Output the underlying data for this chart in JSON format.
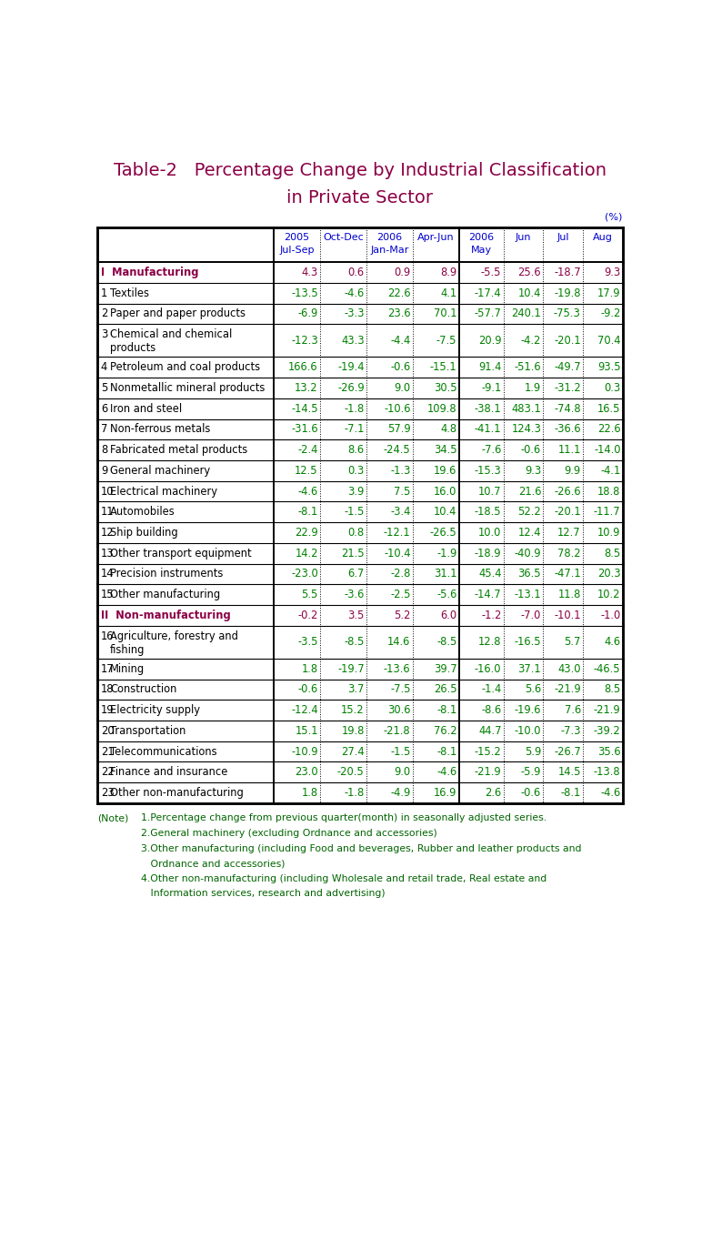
{
  "title_line1": "Table-2   Percentage Change by Industrial Classification",
  "title_line2": "in Private Sector",
  "title_color": "#8B0045",
  "percent_label": "(%)",
  "header_color": "#0000CD",
  "rows": [
    {
      "label": "Manufacturing",
      "num": "I",
      "bold": true,
      "roman": true,
      "category_color": "#8B0045",
      "values": [
        "4.3",
        "0.6",
        "0.9",
        "8.9",
        "-5.5",
        "25.6",
        "-18.7",
        "9.3"
      ],
      "value_color": "#8B0045",
      "multiline": false
    },
    {
      "label": "Textiles",
      "num": "1",
      "bold": false,
      "roman": false,
      "category_color": "#000000",
      "values": [
        "-13.5",
        "-4.6",
        "22.6",
        "4.1",
        "-17.4",
        "10.4",
        "-19.8",
        "17.9"
      ],
      "value_color": "#008000",
      "multiline": false
    },
    {
      "label": "Paper and paper products",
      "num": "2",
      "bold": false,
      "roman": false,
      "category_color": "#000000",
      "values": [
        "-6.9",
        "-3.3",
        "23.6",
        "70.1",
        "-57.7",
        "240.1",
        "-75.3",
        "-9.2"
      ],
      "value_color": "#008000",
      "multiline": false
    },
    {
      "label": "Chemical and chemical\nproducts",
      "num": "3",
      "bold": false,
      "roman": false,
      "category_color": "#000000",
      "values": [
        "-12.3",
        "43.3",
        "-4.4",
        "-7.5",
        "20.9",
        "-4.2",
        "-20.1",
        "70.4"
      ],
      "value_color": "#008000",
      "multiline": true
    },
    {
      "label": "Petroleum and coal products",
      "num": "4",
      "bold": false,
      "roman": false,
      "category_color": "#000000",
      "values": [
        "166.6",
        "-19.4",
        "-0.6",
        "-15.1",
        "91.4",
        "-51.6",
        "-49.7",
        "93.5"
      ],
      "value_color": "#008000",
      "multiline": false
    },
    {
      "label": "Nonmetallic mineral products",
      "num": "5",
      "bold": false,
      "roman": false,
      "category_color": "#000000",
      "values": [
        "13.2",
        "-26.9",
        "9.0",
        "30.5",
        "-9.1",
        "1.9",
        "-31.2",
        "0.3"
      ],
      "value_color": "#008000",
      "multiline": false
    },
    {
      "label": "Iron and steel",
      "num": "6",
      "bold": false,
      "roman": false,
      "category_color": "#000000",
      "values": [
        "-14.5",
        "-1.8",
        "-10.6",
        "109.8",
        "-38.1",
        "483.1",
        "-74.8",
        "16.5"
      ],
      "value_color": "#008000",
      "multiline": false
    },
    {
      "label": "Non-ferrous metals",
      "num": "7",
      "bold": false,
      "roman": false,
      "category_color": "#000000",
      "values": [
        "-31.6",
        "-7.1",
        "57.9",
        "4.8",
        "-41.1",
        "124.3",
        "-36.6",
        "22.6"
      ],
      "value_color": "#008000",
      "multiline": false
    },
    {
      "label": "Fabricated metal products",
      "num": "8",
      "bold": false,
      "roman": false,
      "category_color": "#000000",
      "values": [
        "-2.4",
        "8.6",
        "-24.5",
        "34.5",
        "-7.6",
        "-0.6",
        "11.1",
        "-14.0"
      ],
      "value_color": "#008000",
      "multiline": false
    },
    {
      "label": "General machinery",
      "num": "9",
      "bold": false,
      "roman": false,
      "category_color": "#000000",
      "values": [
        "12.5",
        "0.3",
        "-1.3",
        "19.6",
        "-15.3",
        "9.3",
        "9.9",
        "-4.1"
      ],
      "value_color": "#008000",
      "multiline": false
    },
    {
      "label": "Electrical machinery",
      "num": "10",
      "bold": false,
      "roman": false,
      "category_color": "#000000",
      "values": [
        "-4.6",
        "3.9",
        "7.5",
        "16.0",
        "10.7",
        "21.6",
        "-26.6",
        "18.8"
      ],
      "value_color": "#008000",
      "multiline": false
    },
    {
      "label": "Automobiles",
      "num": "11",
      "bold": false,
      "roman": false,
      "category_color": "#000000",
      "values": [
        "-8.1",
        "-1.5",
        "-3.4",
        "10.4",
        "-18.5",
        "52.2",
        "-20.1",
        "-11.7"
      ],
      "value_color": "#008000",
      "multiline": false
    },
    {
      "label": "Ship building",
      "num": "12",
      "bold": false,
      "roman": false,
      "category_color": "#000000",
      "values": [
        "22.9",
        "0.8",
        "-12.1",
        "-26.5",
        "10.0",
        "12.4",
        "12.7",
        "10.9"
      ],
      "value_color": "#008000",
      "multiline": false
    },
    {
      "label": "Other transport equipment",
      "num": "13",
      "bold": false,
      "roman": false,
      "category_color": "#000000",
      "values": [
        "14.2",
        "21.5",
        "-10.4",
        "-1.9",
        "-18.9",
        "-40.9",
        "78.2",
        "8.5"
      ],
      "value_color": "#008000",
      "multiline": false
    },
    {
      "label": "Precision instruments",
      "num": "14",
      "bold": false,
      "roman": false,
      "category_color": "#000000",
      "values": [
        "-23.0",
        "6.7",
        "-2.8",
        "31.1",
        "45.4",
        "36.5",
        "-47.1",
        "20.3"
      ],
      "value_color": "#008000",
      "multiline": false
    },
    {
      "label": "Other manufacturing",
      "num": "15",
      "bold": false,
      "roman": false,
      "category_color": "#000000",
      "values": [
        "5.5",
        "-3.6",
        "-2.5",
        "-5.6",
        "-14.7",
        "-13.1",
        "11.8",
        "10.2"
      ],
      "value_color": "#008000",
      "multiline": false
    },
    {
      "label": "Non-manufacturing",
      "num": "II",
      "bold": true,
      "roman": true,
      "category_color": "#8B0045",
      "values": [
        "-0.2",
        "3.5",
        "5.2",
        "6.0",
        "-1.2",
        "-7.0",
        "-10.1",
        "-1.0"
      ],
      "value_color": "#8B0045",
      "multiline": false
    },
    {
      "label": "Agriculture, forestry and\nfishing",
      "num": "16",
      "bold": false,
      "roman": false,
      "category_color": "#000000",
      "values": [
        "-3.5",
        "-8.5",
        "14.6",
        "-8.5",
        "12.8",
        "-16.5",
        "5.7",
        "4.6"
      ],
      "value_color": "#008000",
      "multiline": true
    },
    {
      "label": "Mining",
      "num": "17",
      "bold": false,
      "roman": false,
      "category_color": "#000000",
      "values": [
        "1.8",
        "-19.7",
        "-13.6",
        "39.7",
        "-16.0",
        "37.1",
        "43.0",
        "-46.5"
      ],
      "value_color": "#008000",
      "multiline": false
    },
    {
      "label": "Construction",
      "num": "18",
      "bold": false,
      "roman": false,
      "category_color": "#000000",
      "values": [
        "-0.6",
        "3.7",
        "-7.5",
        "26.5",
        "-1.4",
        "5.6",
        "-21.9",
        "8.5"
      ],
      "value_color": "#008000",
      "multiline": false
    },
    {
      "label": "Electricity supply",
      "num": "19",
      "bold": false,
      "roman": false,
      "category_color": "#000000",
      "values": [
        "-12.4",
        "15.2",
        "30.6",
        "-8.1",
        "-8.6",
        "-19.6",
        "7.6",
        "-21.9"
      ],
      "value_color": "#008000",
      "multiline": false
    },
    {
      "label": "Transportation",
      "num": "20",
      "bold": false,
      "roman": false,
      "category_color": "#000000",
      "values": [
        "15.1",
        "19.8",
        "-21.8",
        "76.2",
        "44.7",
        "-10.0",
        "-7.3",
        "-39.2"
      ],
      "value_color": "#008000",
      "multiline": false
    },
    {
      "label": "Telecommunications",
      "num": "21",
      "bold": false,
      "roman": false,
      "category_color": "#000000",
      "values": [
        "-10.9",
        "27.4",
        "-1.5",
        "-8.1",
        "-15.2",
        "5.9",
        "-26.7",
        "35.6"
      ],
      "value_color": "#008000",
      "multiline": false
    },
    {
      "label": "Finance and insurance",
      "num": "22",
      "bold": false,
      "roman": false,
      "category_color": "#000000",
      "values": [
        "23.0",
        "-20.5",
        "9.0",
        "-4.6",
        "-21.9",
        "-5.9",
        "14.5",
        "-13.8"
      ],
      "value_color": "#008000",
      "multiline": false
    },
    {
      "label": "Other non-manufacturing",
      "num": "23",
      "bold": false,
      "roman": false,
      "category_color": "#000000",
      "values": [
        "1.8",
        "-1.8",
        "-4.9",
        "16.9",
        "2.6",
        "-0.6",
        "-8.1",
        "-4.6"
      ],
      "value_color": "#008000",
      "multiline": false
    }
  ],
  "notes_lines": [
    [
      "(Note)",
      "1.Percentage change from previous quarter(month) in seasonally adjusted series."
    ],
    [
      "",
      "2.General machinery (excluding Ordnance and accessories)"
    ],
    [
      "",
      "3.Other manufacturing (including Food and beverages, Rubber and leather products and"
    ],
    [
      "",
      "   Ordnance and accessories)"
    ],
    [
      "",
      "4.Other non-manufacturing (including Wholesale and retail trade, Real estate and"
    ],
    [
      "",
      "   Information services, research and advertising)"
    ]
  ],
  "note_color": "#006400",
  "bg_color": "#FFFFFF",
  "border_color": "#000000",
  "col_proportions": [
    0.325,
    0.085,
    0.085,
    0.085,
    0.085,
    0.082,
    0.073,
    0.073,
    0.073
  ]
}
